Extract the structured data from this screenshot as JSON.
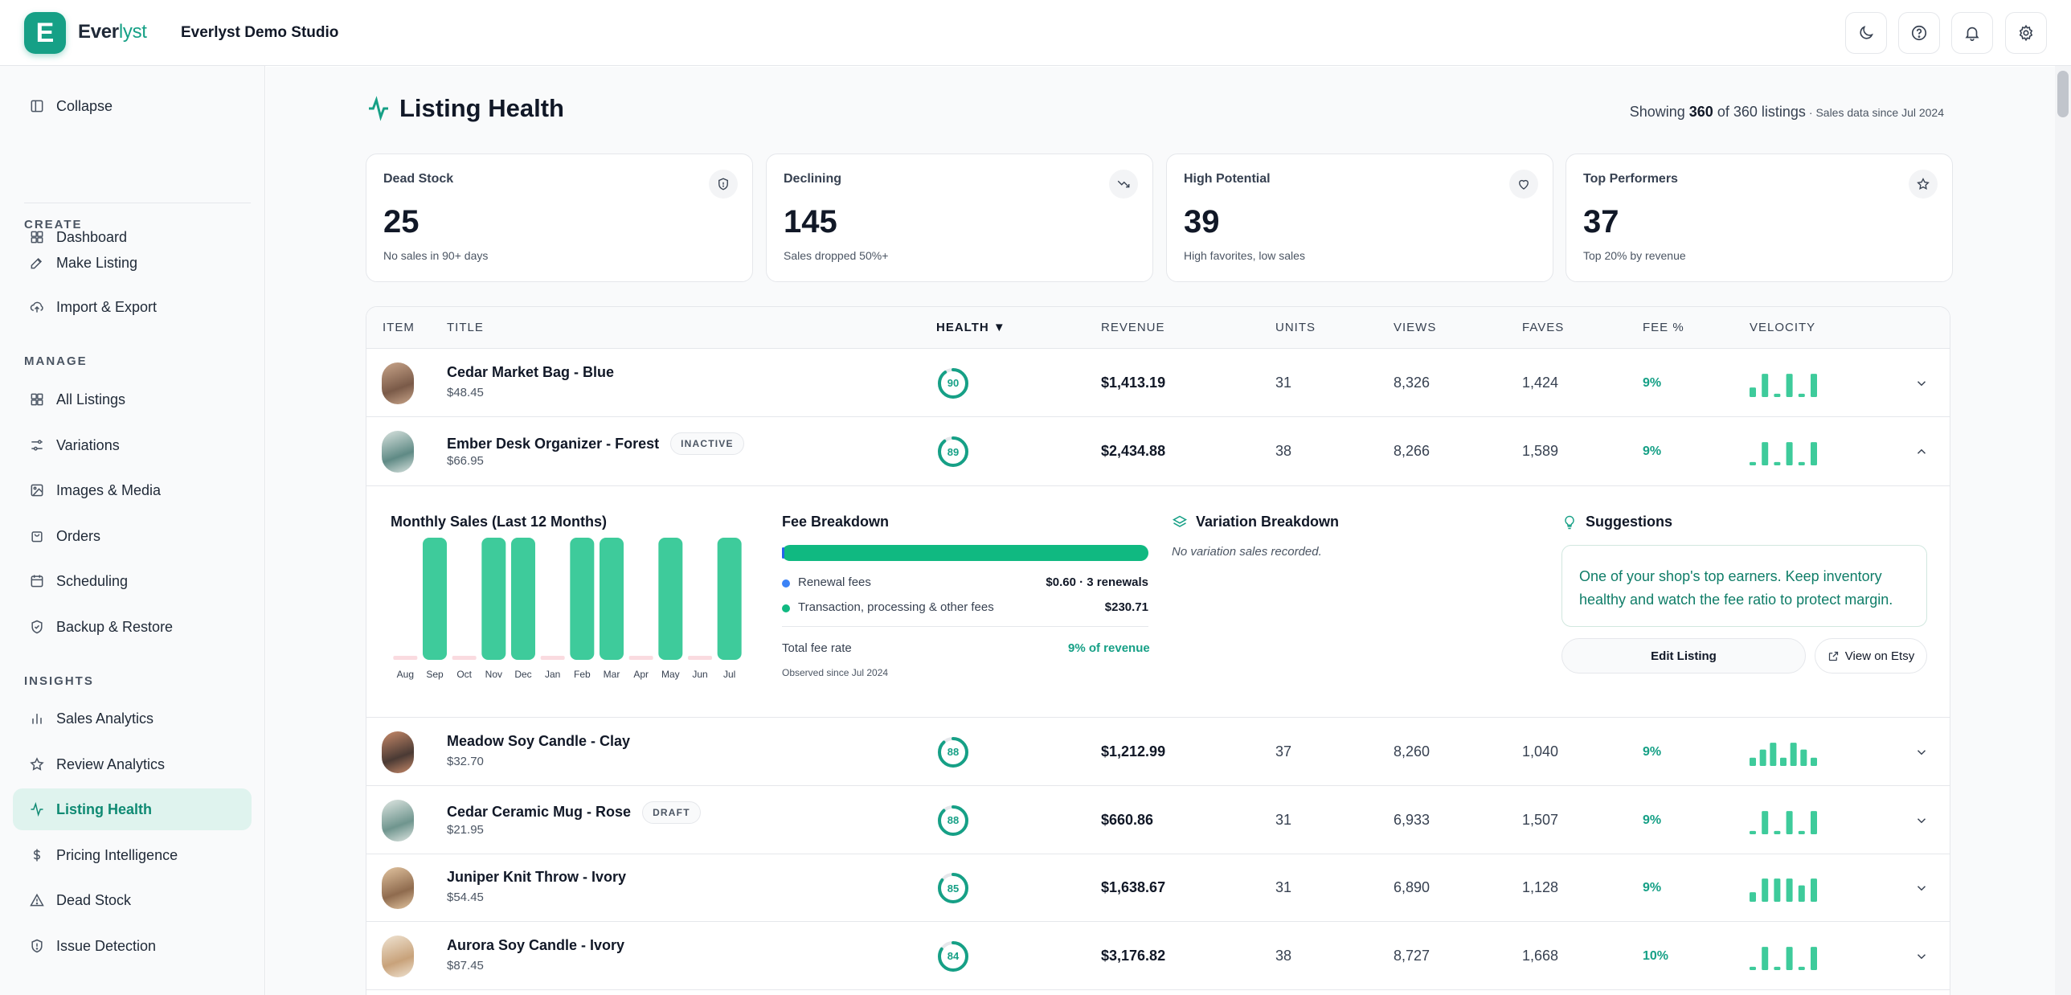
{
  "brand": {
    "logo_letter": "E",
    "name_part1": "Ever",
    "name_part2": "lyst",
    "studio": "Everlyst Demo Studio"
  },
  "topbar_icons": [
    "moon-icon",
    "help-icon",
    "bell-icon",
    "gear-icon"
  ],
  "sidebar": {
    "collapse": "Collapse",
    "dashboard": "Dashboard",
    "sections": {
      "create": "CREATE",
      "manage": "MANAGE",
      "insights": "INSIGHTS"
    },
    "create_items": [
      "Make Listing",
      "Import & Export"
    ],
    "manage_items": [
      "All Listings",
      "Variations",
      "Images & Media",
      "Orders",
      "Scheduling",
      "Backup & Restore"
    ],
    "insights_items": [
      "Sales Analytics",
      "Review Analytics",
      "Listing Health",
      "Pricing Intelligence",
      "Dead Stock",
      "Issue Detection"
    ],
    "active": "Listing Health"
  },
  "page": {
    "title": "Listing Health",
    "showing_prefix": "Showing",
    "showing_count": "360",
    "showing_suffix": "of 360 listings",
    "since": "· Sales data since Jul 2024"
  },
  "stats": [
    {
      "label": "Dead Stock",
      "value": "25",
      "sub": "No sales in 90+ days",
      "icon": "shield-icon"
    },
    {
      "label": "Declining",
      "value": "145",
      "sub": "Sales dropped 50%+",
      "icon": "trending-down-icon"
    },
    {
      "label": "High Potential",
      "value": "39",
      "sub": "High favorites, low sales",
      "icon": "heart-icon"
    },
    {
      "label": "Top Performers",
      "value": "37",
      "sub": "Top 20% by revenue",
      "icon": "star-icon"
    }
  ],
  "table": {
    "headers": {
      "item": "ITEM",
      "title": "TITLE",
      "health": "HEALTH ▼",
      "revenue": "REVENUE",
      "units": "UNITS",
      "views": "VIEWS",
      "faves": "FAVES",
      "fee": "FEE %",
      "velocity": "VELOCITY"
    },
    "rows": [
      {
        "title": "Cedar Market Bag - Blue",
        "badge": "",
        "price": "$48.45",
        "health": 90,
        "health_label": "90",
        "revenue": "$1,413.19",
        "units": "31",
        "views": "8,326",
        "faves": "1,424",
        "fee": "9%",
        "velocity": [
          0.35,
          0.85,
          0.12,
          0.85,
          0.12,
          0.85
        ],
        "expanded": false
      },
      {
        "title": "Ember Desk Organizer - Forest",
        "badge": "INACTIVE",
        "price": "$66.95",
        "health": 89,
        "health_label": "89",
        "revenue": "$2,434.88",
        "units": "38",
        "views": "8,266",
        "faves": "1,589",
        "fee": "9%",
        "velocity": [
          0.12,
          0.85,
          0.12,
          0.85,
          0.12,
          0.85
        ],
        "expanded": true
      },
      {
        "title": "Meadow Soy Candle - Clay",
        "badge": "",
        "price": "$32.70",
        "health": 88,
        "health_label": "88",
        "revenue": "$1,212.99",
        "units": "37",
        "views": "8,260",
        "faves": "1,040",
        "fee": "9%",
        "velocity": [
          0.3,
          0.6,
          0.85,
          0.3,
          0.85,
          0.6,
          0.3
        ],
        "expanded": false
      },
      {
        "title": "Cedar Ceramic Mug - Rose",
        "badge": "DRAFT",
        "price": "$21.95",
        "health": 88,
        "health_label": "88",
        "revenue": "$660.86",
        "units": "31",
        "views": "6,933",
        "faves": "1,507",
        "fee": "9%",
        "velocity": [
          0.12,
          0.85,
          0.12,
          0.85,
          0.12,
          0.85
        ],
        "expanded": false
      },
      {
        "title": "Juniper Knit Throw - Ivory",
        "badge": "",
        "price": "$54.45",
        "health": 85,
        "health_label": "85",
        "revenue": "$1,638.67",
        "units": "31",
        "views": "6,890",
        "faves": "1,128",
        "fee": "9%",
        "velocity": [
          0.35,
          0.85,
          0.85,
          0.85,
          0.6,
          0.85
        ],
        "expanded": false
      },
      {
        "title": "Aurora Soy Candle - Ivory",
        "badge": "",
        "price": "$87.45",
        "health": 84,
        "health_label": "84",
        "revenue": "$3,176.82",
        "units": "38",
        "views": "8,727",
        "faves": "1,668",
        "fee": "10%",
        "velocity": [
          0.12,
          0.85,
          0.12,
          0.85,
          0.12,
          0.85
        ],
        "expanded": false
      }
    ]
  },
  "expanded": {
    "monthly_title": "Monthly Sales (Last 12 Months)",
    "fee_title": "Fee Breakdown",
    "variation_title": "Variation Breakdown",
    "suggestions_title": "Suggestions",
    "no_variation": "No variation sales recorded.",
    "fee_lines": [
      {
        "label": "Renewal fees",
        "value": "$0.60 · 3 renewals",
        "color": "#3b82f6"
      },
      {
        "label": "Transaction, processing & other fees",
        "value": "$230.71",
        "color": "#10b981"
      }
    ],
    "fee_total_label": "Total fee rate",
    "fee_total_value": "9% of revenue",
    "fee_observed": "Observed since Jul 2024",
    "suggestion_text": "One of your shop's top earners. Keep inventory healthy and watch the fee ratio to protect margin.",
    "edit_button": "Edit Listing",
    "etsy_button": "View on Etsy"
  },
  "chart_data": {
    "type": "bar",
    "title": "Monthly Sales (Last 12 Months)",
    "categories": [
      "Aug",
      "Sep",
      "Oct",
      "Nov",
      "Dec",
      "Jan",
      "Feb",
      "Mar",
      "Apr",
      "May",
      "Jun",
      "Jul"
    ],
    "values": [
      0,
      1,
      0,
      1,
      1,
      0,
      1,
      1,
      0,
      1,
      0,
      1
    ],
    "xlabel": "",
    "ylabel": "",
    "colors": {
      "bar": "#3ecb9b",
      "zero_marker": "#fadbe0"
    }
  },
  "colors": {
    "accent": "#16a086",
    "bar": "#3ecb9b",
    "ring_track": "#e5e7eb"
  }
}
